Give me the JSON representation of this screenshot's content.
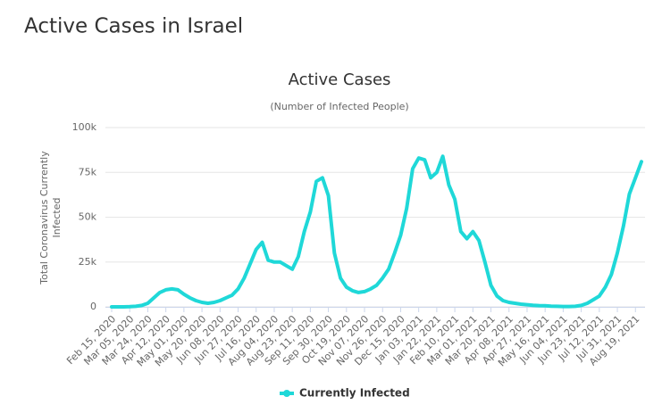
{
  "page_title": "Active Cases in Israel",
  "chart_data": {
    "type": "line",
    "title": "Active Cases",
    "subtitle": "(Number of Infected People)",
    "y_label": [
      "Total Coronavirus Currently",
      "Infected"
    ],
    "categories": [
      "Feb 15, 2020",
      null,
      null,
      "Mar 05, 2020",
      null,
      null,
      "Mar 24, 2020",
      null,
      null,
      "Apr 12, 2020",
      null,
      null,
      "May 01, 2020",
      null,
      null,
      "May 20, 2020",
      null,
      null,
      "Jun 08, 2020",
      null,
      null,
      "Jun 27, 2020",
      null,
      null,
      "Jul 16, 2020",
      null,
      null,
      "Aug 04, 2020",
      null,
      null,
      "Aug 23, 2020",
      null,
      null,
      "Sep 11, 2020",
      null,
      null,
      "Sep 30, 2020",
      null,
      null,
      "Oct 19, 2020",
      null,
      null,
      "Nov 07, 2020",
      null,
      null,
      "Nov 26, 2020",
      null,
      null,
      "Dec 15, 2020",
      null,
      null,
      "Jan 03, 2021",
      null,
      null,
      "Jan 22, 2021",
      null,
      null,
      "Feb 10, 2021",
      null,
      null,
      "Mar 01, 2021",
      null,
      null,
      "Mar 20, 2021",
      null,
      null,
      "Apr 08, 2021",
      null,
      null,
      "Apr 27, 2021",
      null,
      null,
      "May 16, 2021",
      null,
      null,
      "Jun 04, 2021",
      null,
      null,
      "Jun 23, 2021",
      null,
      null,
      "Jul 12, 2021",
      null,
      null,
      "Jul 31, 2021",
      null,
      null,
      "Aug 19, 2021",
      null
    ],
    "series": [
      {
        "name": "Currently Infected",
        "color": "#1fd8d8",
        "values": [
          0,
          0,
          0,
          100,
          300,
          800,
          2000,
          5000,
          8000,
          9500,
          10000,
          9500,
          7000,
          5000,
          3500,
          2500,
          2000,
          2500,
          3500,
          5000,
          6500,
          10000,
          16000,
          24000,
          32000,
          36000,
          26000,
          25000,
          25000,
          23000,
          21000,
          28000,
          42000,
          53000,
          70000,
          72000,
          62000,
          30000,
          16000,
          11000,
          9000,
          8000,
          8500,
          10000,
          12000,
          16000,
          21000,
          30000,
          40000,
          55000,
          77000,
          83000,
          82000,
          72000,
          75000,
          84000,
          68000,
          60000,
          42000,
          38000,
          42000,
          37000,
          25000,
          12000,
          6000,
          3500,
          2500,
          2000,
          1500,
          1200,
          900,
          700,
          600,
          400,
          300,
          200,
          200,
          300,
          800,
          2000,
          4000,
          6000,
          11000,
          18000,
          30000,
          45000,
          63000,
          72000,
          81000
        ]
      }
    ],
    "ylim": [
      0,
      100000
    ],
    "yticks": [
      0,
      {
        "value": 25000,
        "label": "25k"
      },
      {
        "value": 50000,
        "label": "50k"
      },
      {
        "value": 75000,
        "label": "75k"
      },
      {
        "value": 100000,
        "label": "100k"
      }
    ],
    "grid": true,
    "legend": "bottom"
  }
}
